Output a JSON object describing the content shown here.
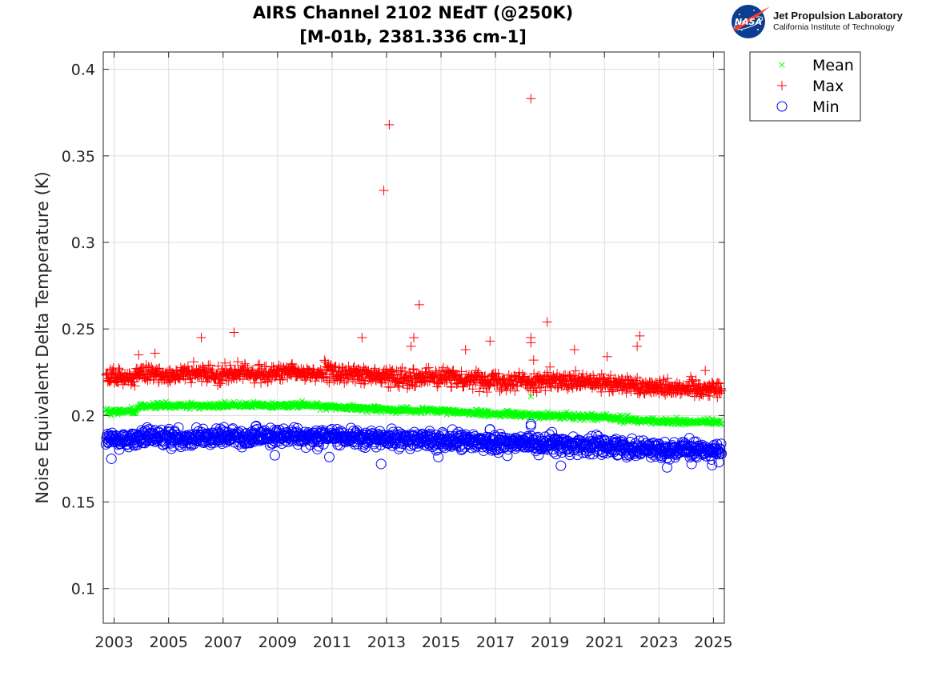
{
  "logo": {
    "badge_text": "NASA",
    "line1": "Jet Propulsion Laboratory",
    "line2": "California Institute of Technology",
    "colors": {
      "badge_blue": "#0b3d91",
      "swoosh_red": "#fc3d21"
    }
  },
  "chart_data": {
    "type": "scatter",
    "title": "AIRS Channel 2102 NEdT (@250K)",
    "subtitle": "[M-01b, 2381.336 cm-1]",
    "xlabel": "",
    "ylabel": "Noise Equivalent Delta Temperature (K)",
    "xlim": [
      2002.6,
      2025.4
    ],
    "ylim": [
      0.08,
      0.41
    ],
    "xticks": [
      2003,
      2005,
      2007,
      2009,
      2011,
      2013,
      2015,
      2017,
      2019,
      2021,
      2023,
      2025
    ],
    "xtick_labels": [
      "2003",
      "2005",
      "2007",
      "2009",
      "2011",
      "2013",
      "2015",
      "2017",
      "2019",
      "2021",
      "2023",
      "2025"
    ],
    "yticks": [
      0.1,
      0.15,
      0.2,
      0.25,
      0.3,
      0.35,
      0.4
    ],
    "ytick_labels": [
      "0.1",
      "0.15",
      "0.2",
      "0.25",
      "0.3",
      "0.35",
      "0.4"
    ],
    "grid": true,
    "legend_position": "top-right-outside",
    "series": [
      {
        "name": "Mean",
        "marker": "x",
        "color": "#00ff00",
        "trend": [
          [
            2002.7,
            0.2025
          ],
          [
            2003.8,
            0.2025
          ],
          [
            2003.9,
            0.2055
          ],
          [
            2010.0,
            0.206
          ],
          [
            2011.0,
            0.205
          ],
          [
            2013.0,
            0.2035
          ],
          [
            2015.0,
            0.2025
          ],
          [
            2017.0,
            0.201
          ],
          [
            2019.0,
            0.2
          ],
          [
            2021.0,
            0.199
          ],
          [
            2022.0,
            0.1975
          ],
          [
            2023.0,
            0.1965
          ],
          [
            2025.3,
            0.196
          ]
        ],
        "spread": 0.0012,
        "outliers": [
          [
            2004.9,
            0.208
          ],
          [
            2018.3,
            0.211
          ],
          [
            2002.9,
            0.2
          ]
        ]
      },
      {
        "name": "Max",
        "marker": "+",
        "color": "#ff0000",
        "trend": [
          [
            2002.7,
            0.222
          ],
          [
            2003.8,
            0.222
          ],
          [
            2003.9,
            0.2235
          ],
          [
            2009.0,
            0.2245
          ],
          [
            2011.0,
            0.2245
          ],
          [
            2013.0,
            0.2225
          ],
          [
            2015.0,
            0.222
          ],
          [
            2017.0,
            0.2205
          ],
          [
            2019.0,
            0.2195
          ],
          [
            2021.0,
            0.2185
          ],
          [
            2023.0,
            0.2165
          ],
          [
            2025.3,
            0.2155
          ]
        ],
        "spread": 0.0035,
        "outliers": [
          [
            2006.2,
            0.245
          ],
          [
            2007.4,
            0.248
          ],
          [
            2012.1,
            0.245
          ],
          [
            2012.9,
            0.33
          ],
          [
            2013.1,
            0.368
          ],
          [
            2013.9,
            0.24
          ],
          [
            2014.0,
            0.245
          ],
          [
            2014.2,
            0.264
          ],
          [
            2015.9,
            0.238
          ],
          [
            2016.8,
            0.243
          ],
          [
            2018.3,
            0.383
          ],
          [
            2018.3,
            0.245
          ],
          [
            2018.3,
            0.242
          ],
          [
            2018.4,
            0.232
          ],
          [
            2018.9,
            0.254
          ],
          [
            2019.9,
            0.238
          ],
          [
            2021.1,
            0.234
          ],
          [
            2022.2,
            0.24
          ],
          [
            2022.3,
            0.246
          ],
          [
            2004.5,
            0.236
          ],
          [
            2003.9,
            0.235
          ],
          [
            2019.0,
            0.228
          ],
          [
            2024.7,
            0.226
          ]
        ]
      },
      {
        "name": "Min",
        "marker": "o",
        "color": "#0000ff",
        "trend": [
          [
            2002.7,
            0.186
          ],
          [
            2003.8,
            0.186
          ],
          [
            2003.9,
            0.187
          ],
          [
            2009.0,
            0.188
          ],
          [
            2011.0,
            0.188
          ],
          [
            2013.0,
            0.1865
          ],
          [
            2015.0,
            0.1855
          ],
          [
            2017.0,
            0.1845
          ],
          [
            2019.0,
            0.1835
          ],
          [
            2021.0,
            0.1825
          ],
          [
            2023.0,
            0.1805
          ],
          [
            2025.3,
            0.1795
          ]
        ],
        "spread": 0.0035,
        "outliers": [
          [
            2012.8,
            0.172
          ],
          [
            2018.3,
            0.195
          ],
          [
            2018.3,
            0.194
          ],
          [
            2019.4,
            0.171
          ],
          [
            2023.3,
            0.17
          ],
          [
            2010.9,
            0.176
          ],
          [
            2002.9,
            0.175
          ],
          [
            2016.8,
            0.192
          ],
          [
            2008.9,
            0.177
          ],
          [
            2024.2,
            0.172
          ],
          [
            2025.2,
            0.173
          ],
          [
            2014.9,
            0.176
          ]
        ]
      }
    ]
  }
}
